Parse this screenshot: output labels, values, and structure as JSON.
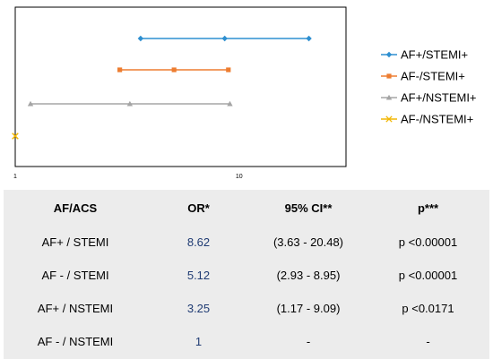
{
  "chart_data": {
    "type": "line",
    "x_scale": "log",
    "xlim": [
      1,
      30
    ],
    "x_ticks": [
      "1",
      "10"
    ],
    "grid": false,
    "legend": "right",
    "series": [
      {
        "name": "AF+/STEMI+",
        "color": "#2e8fd0",
        "marker": "diamond",
        "values": [
          3.63,
          8.62,
          20.48
        ]
      },
      {
        "name": "AF-/STEMI+",
        "color": "#ed7d31",
        "marker": "square",
        "values": [
          2.93,
          5.12,
          8.95
        ]
      },
      {
        "name": "AF+/NSTEMI+",
        "color": "#a5a5a5",
        "marker": "triangle",
        "values": [
          1.17,
          3.25,
          9.09
        ]
      },
      {
        "name": "AF-/NSTEMI+",
        "color": "#f2b705",
        "marker": "x",
        "values": [
          1,
          1,
          1
        ]
      }
    ]
  },
  "table": {
    "headers": [
      "AF/ACS",
      "OR*",
      "95% CI**",
      "p***"
    ],
    "rows": [
      [
        "AF+ / STEMI",
        "8.62",
        "(3.63 - 20.48)",
        "p <0.00001"
      ],
      [
        "AF - / STEMI",
        "5.12",
        "(2.93 - 8.95)",
        "p <0.00001"
      ],
      [
        "AF+ / NSTEMI",
        "3.25",
        "(1.17 - 9.09)",
        "p <0.0171"
      ],
      [
        "AF - / NSTEMI",
        "1",
        "-",
        "-"
      ]
    ]
  }
}
